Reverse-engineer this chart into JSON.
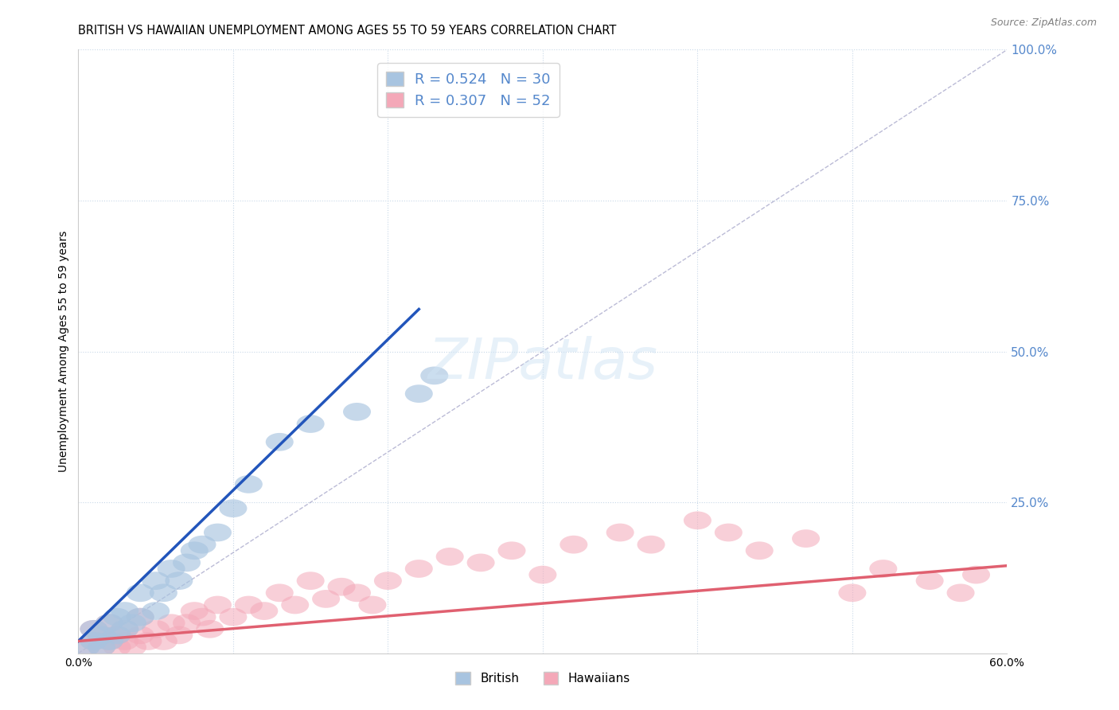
{
  "title": "BRITISH VS HAWAIIAN UNEMPLOYMENT AMONG AGES 55 TO 59 YEARS CORRELATION CHART",
  "source": "Source: ZipAtlas.com",
  "ylabel": "Unemployment Among Ages 55 to 59 years",
  "xlim": [
    0.0,
    0.6
  ],
  "ylim": [
    0.0,
    1.0
  ],
  "xticks": [
    0.0,
    0.1,
    0.2,
    0.3,
    0.4,
    0.5,
    0.6
  ],
  "yticks": [
    0.0,
    0.25,
    0.5,
    0.75,
    1.0
  ],
  "xtick_labels": [
    "0.0%",
    "",
    "",
    "",
    "",
    "",
    "60.0%"
  ],
  "ytick_labels": [
    "",
    "25.0%",
    "50.0%",
    "75.0%",
    "100.0%"
  ],
  "british_R": 0.524,
  "british_N": 30,
  "hawaiian_R": 0.307,
  "hawaiian_N": 52,
  "british_color": "#a8c4e0",
  "hawaiian_color": "#f4a8b8",
  "british_line_color": "#2255bb",
  "hawaiian_line_color": "#e06070",
  "ref_line_color": "#aaaacc",
  "background_color": "#ffffff",
  "grid_color": "#c8d8e8",
  "ytick_color": "#5588cc",
  "british_line_x": [
    0.0,
    0.22
  ],
  "british_line_y": [
    0.02,
    0.57
  ],
  "hawaiian_line_x": [
    0.0,
    0.6
  ],
  "hawaiian_line_y": [
    0.02,
    0.145
  ],
  "british_scatter_x": [
    0.005,
    0.01,
    0.01,
    0.015,
    0.015,
    0.02,
    0.02,
    0.025,
    0.025,
    0.03,
    0.03,
    0.035,
    0.04,
    0.04,
    0.05,
    0.05,
    0.055,
    0.06,
    0.065,
    0.07,
    0.075,
    0.08,
    0.09,
    0.1,
    0.11,
    0.13,
    0.15,
    0.18,
    0.22,
    0.23
  ],
  "british_scatter_y": [
    0.01,
    0.02,
    0.04,
    0.01,
    0.03,
    0.02,
    0.05,
    0.03,
    0.06,
    0.04,
    0.07,
    0.05,
    0.06,
    0.1,
    0.07,
    0.12,
    0.1,
    0.14,
    0.12,
    0.15,
    0.17,
    0.18,
    0.2,
    0.24,
    0.28,
    0.35,
    0.38,
    0.4,
    0.43,
    0.46
  ],
  "hawaiian_scatter_x": [
    0.005,
    0.01,
    0.01,
    0.015,
    0.015,
    0.02,
    0.02,
    0.025,
    0.025,
    0.03,
    0.03,
    0.035,
    0.04,
    0.04,
    0.045,
    0.05,
    0.055,
    0.06,
    0.065,
    0.07,
    0.075,
    0.08,
    0.085,
    0.09,
    0.1,
    0.11,
    0.12,
    0.13,
    0.14,
    0.15,
    0.16,
    0.17,
    0.18,
    0.19,
    0.2,
    0.22,
    0.24,
    0.26,
    0.28,
    0.3,
    0.32,
    0.35,
    0.37,
    0.4,
    0.42,
    0.44,
    0.47,
    0.5,
    0.52,
    0.55,
    0.57,
    0.58
  ],
  "hawaiian_scatter_y": [
    0.01,
    0.02,
    0.04,
    0.01,
    0.03,
    0.02,
    0.05,
    0.01,
    0.03,
    0.02,
    0.04,
    0.01,
    0.03,
    0.06,
    0.02,
    0.04,
    0.02,
    0.05,
    0.03,
    0.05,
    0.07,
    0.06,
    0.04,
    0.08,
    0.06,
    0.08,
    0.07,
    0.1,
    0.08,
    0.12,
    0.09,
    0.11,
    0.1,
    0.08,
    0.12,
    0.14,
    0.16,
    0.15,
    0.17,
    0.13,
    0.18,
    0.2,
    0.18,
    0.22,
    0.2,
    0.17,
    0.19,
    0.1,
    0.14,
    0.12,
    0.1,
    0.13
  ],
  "title_fontsize": 10.5,
  "axis_fontsize": 10,
  "tick_fontsize": 10,
  "legend_fontsize": 13
}
